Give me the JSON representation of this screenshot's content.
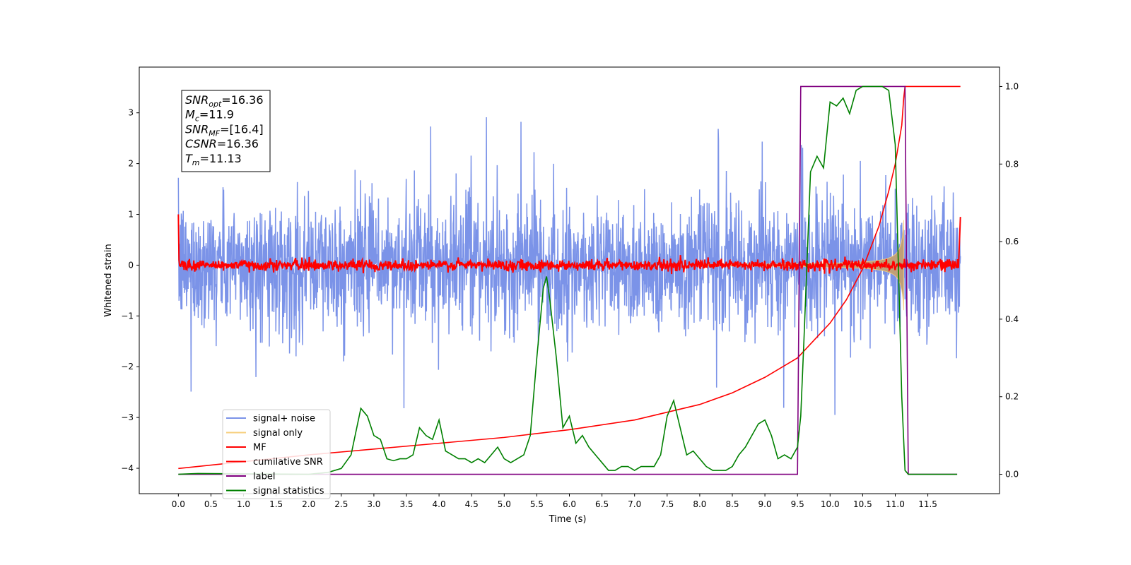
{
  "chart_data": {
    "type": "line",
    "xlabel": "Time (s)",
    "ylabel": "Whitened strain",
    "xlim": [
      -0.6,
      12.6
    ],
    "ylim": [
      -4.5,
      3.9
    ],
    "y2lim": [
      -0.05,
      1.05
    ],
    "x_ticks": [
      "0.0",
      "0.5",
      "1.0",
      "1.5",
      "2.0",
      "2.5",
      "3.0",
      "3.5",
      "4.0",
      "4.5",
      "5.0",
      "5.5",
      "6.0",
      "6.5",
      "7.0",
      "7.5",
      "8.0",
      "8.5",
      "9.0",
      "9.5",
      "10.0",
      "10.5",
      "11.0",
      "11.5"
    ],
    "y_ticks": [
      "3",
      "2",
      "1",
      "0",
      "−1",
      "−2",
      "−3",
      "−4"
    ],
    "y2_ticks": [
      "1.0",
      "0.8",
      "0.6",
      "0.4",
      "0.2",
      "0.0"
    ],
    "info_box": [
      {
        "base": "SNR",
        "sub": "opt",
        "value": "=16.36"
      },
      {
        "base": "M",
        "sub": "c",
        "value": "=11.9"
      },
      {
        "base": "SNR",
        "sub": "MF",
        "value": "=[16.4]"
      },
      {
        "base": "CSNR",
        "sub": "",
        "value": "=16.36"
      },
      {
        "base": "T",
        "sub": "m",
        "value": "=11.13"
      }
    ],
    "legend": [
      {
        "name": "signal+ noise",
        "color": "#7b93e8"
      },
      {
        "name": "signal only",
        "color": "#f7cf7e"
      },
      {
        "name": "MF",
        "color": "#ff0000"
      },
      {
        "name": "cumilative SNR",
        "color": "#ff0000"
      },
      {
        "name": "label",
        "color": "#800080"
      },
      {
        "name": "signal statistics",
        "color": "#008000"
      }
    ],
    "series": [
      {
        "name": "signal+ noise",
        "axis": "left",
        "approx": "noise band ±~1.5 (peaks to ~3.5 / −3.3) over 0–12 s"
      },
      {
        "name": "signal only",
        "axis": "left",
        "approx": "chirp growing from ~0.1 at 8.5 s to ~±1.5 near 11.13 s, then 0"
      },
      {
        "name": "MF",
        "axis": "left",
        "approx": "≈0 with noise ±0.15, spikes to ~1.0 at 0 s and 12 s"
      },
      {
        "name": "cumilative SNR",
        "axis": "right",
        "x": [
          0.0,
          2.0,
          4.0,
          5.0,
          6.0,
          7.0,
          7.5,
          8.0,
          8.5,
          9.0,
          9.5,
          10.0,
          10.25,
          10.5,
          10.75,
          10.9,
          11.0,
          11.1,
          11.13,
          11.15,
          12.0
        ],
        "values": [
          0.015,
          0.05,
          0.08,
          0.095,
          0.115,
          0.14,
          0.16,
          0.18,
          0.21,
          0.25,
          0.3,
          0.39,
          0.45,
          0.53,
          0.64,
          0.73,
          0.8,
          0.9,
          0.97,
          1.0,
          1.0
        ]
      },
      {
        "name": "label",
        "axis": "right",
        "x": [
          0.0,
          9.5,
          9.55,
          11.15,
          11.2,
          11.95
        ],
        "values": [
          0,
          0,
          1,
          1,
          0,
          0
        ]
      },
      {
        "name": "signal statistics",
        "axis": "right",
        "x": [
          0.0,
          0.3,
          2.0,
          2.3,
          2.5,
          2.65,
          2.8,
          2.9,
          3.0,
          3.1,
          3.2,
          3.3,
          3.4,
          3.5,
          3.6,
          3.7,
          3.8,
          3.9,
          4.0,
          4.1,
          4.2,
          4.3,
          4.4,
          4.5,
          4.6,
          4.7,
          4.8,
          4.9,
          5.0,
          5.1,
          5.2,
          5.3,
          5.4,
          5.5,
          5.6,
          5.65,
          5.7,
          5.8,
          5.9,
          6.0,
          6.1,
          6.2,
          6.3,
          6.4,
          6.5,
          6.6,
          6.7,
          6.8,
          6.9,
          7.0,
          7.1,
          7.2,
          7.3,
          7.4,
          7.5,
          7.6,
          7.7,
          7.8,
          7.9,
          8.0,
          8.1,
          8.2,
          8.3,
          8.4,
          8.5,
          8.6,
          8.7,
          8.8,
          8.9,
          9.0,
          9.1,
          9.2,
          9.3,
          9.4,
          9.5,
          9.55,
          9.6,
          9.7,
          9.8,
          9.9,
          10.0,
          10.1,
          10.2,
          10.3,
          10.4,
          10.5,
          10.6,
          10.7,
          10.8,
          10.9,
          11.0,
          11.1,
          11.15,
          11.2,
          11.3,
          11.5,
          11.95
        ],
        "values": [
          0,
          0.002,
          0,
          0.005,
          0.015,
          0.05,
          0.17,
          0.15,
          0.1,
          0.09,
          0.04,
          0.035,
          0.04,
          0.04,
          0.05,
          0.12,
          0.1,
          0.09,
          0.14,
          0.06,
          0.05,
          0.04,
          0.04,
          0.03,
          0.04,
          0.03,
          0.05,
          0.07,
          0.04,
          0.03,
          0.04,
          0.05,
          0.1,
          0.3,
          0.48,
          0.51,
          0.45,
          0.3,
          0.12,
          0.15,
          0.08,
          0.1,
          0.07,
          0.05,
          0.03,
          0.01,
          0.01,
          0.02,
          0.02,
          0.01,
          0.02,
          0.02,
          0.02,
          0.05,
          0.15,
          0.19,
          0.12,
          0.05,
          0.06,
          0.04,
          0.02,
          0.01,
          0.01,
          0.01,
          0.02,
          0.05,
          0.07,
          0.1,
          0.13,
          0.14,
          0.1,
          0.04,
          0.05,
          0.04,
          0.07,
          0.15,
          0.35,
          0.78,
          0.82,
          0.79,
          0.96,
          0.95,
          0.97,
          0.93,
          0.99,
          1.0,
          1.0,
          1.0,
          1.0,
          0.99,
          0.85,
          0.2,
          0.01,
          0,
          0,
          0,
          0
        ]
      }
    ]
  }
}
